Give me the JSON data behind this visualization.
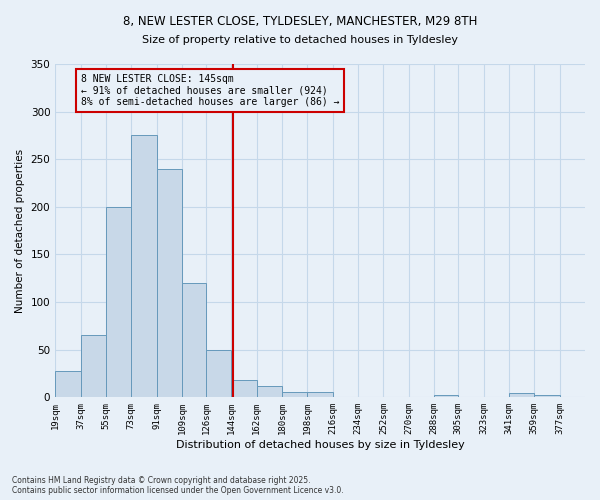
{
  "title_line1": "8, NEW LESTER CLOSE, TYLDESLEY, MANCHESTER, M29 8TH",
  "title_line2": "Size of property relative to detached houses in Tyldesley",
  "xlabel": "Distribution of detached houses by size in Tyldesley",
  "ylabel": "Number of detached properties",
  "footer": "Contains HM Land Registry data © Crown copyright and database right 2025.\nContains public sector information licensed under the Open Government Licence v3.0.",
  "bin_labels": [
    "19sqm",
    "37sqm",
    "55sqm",
    "73sqm",
    "91sqm",
    "109sqm",
    "126sqm",
    "144sqm",
    "162sqm",
    "180sqm",
    "198sqm",
    "216sqm",
    "234sqm",
    "252sqm",
    "270sqm",
    "288sqm",
    "305sqm",
    "323sqm",
    "341sqm",
    "359sqm",
    "377sqm"
  ],
  "bar_values": [
    28,
    65,
    200,
    275,
    240,
    120,
    50,
    18,
    12,
    6,
    6,
    0,
    0,
    0,
    0,
    2,
    0,
    0,
    5,
    2,
    0
  ],
  "bar_color": "#c8d8e8",
  "bar_edge_color": "#6699bb",
  "property_size": 145,
  "property_label": "8 NEW LESTER CLOSE: 145sqm",
  "annotation_line1": "← 91% of detached houses are smaller (924)",
  "annotation_line2": "8% of semi-detached houses are larger (86) →",
  "vline_color": "#cc0000",
  "annotation_box_edge": "#cc0000",
  "ylim": [
    0,
    350
  ],
  "yticks": [
    0,
    50,
    100,
    150,
    200,
    250,
    300,
    350
  ],
  "grid_color": "#c5d8ea",
  "bg_color": "#e8f0f8"
}
